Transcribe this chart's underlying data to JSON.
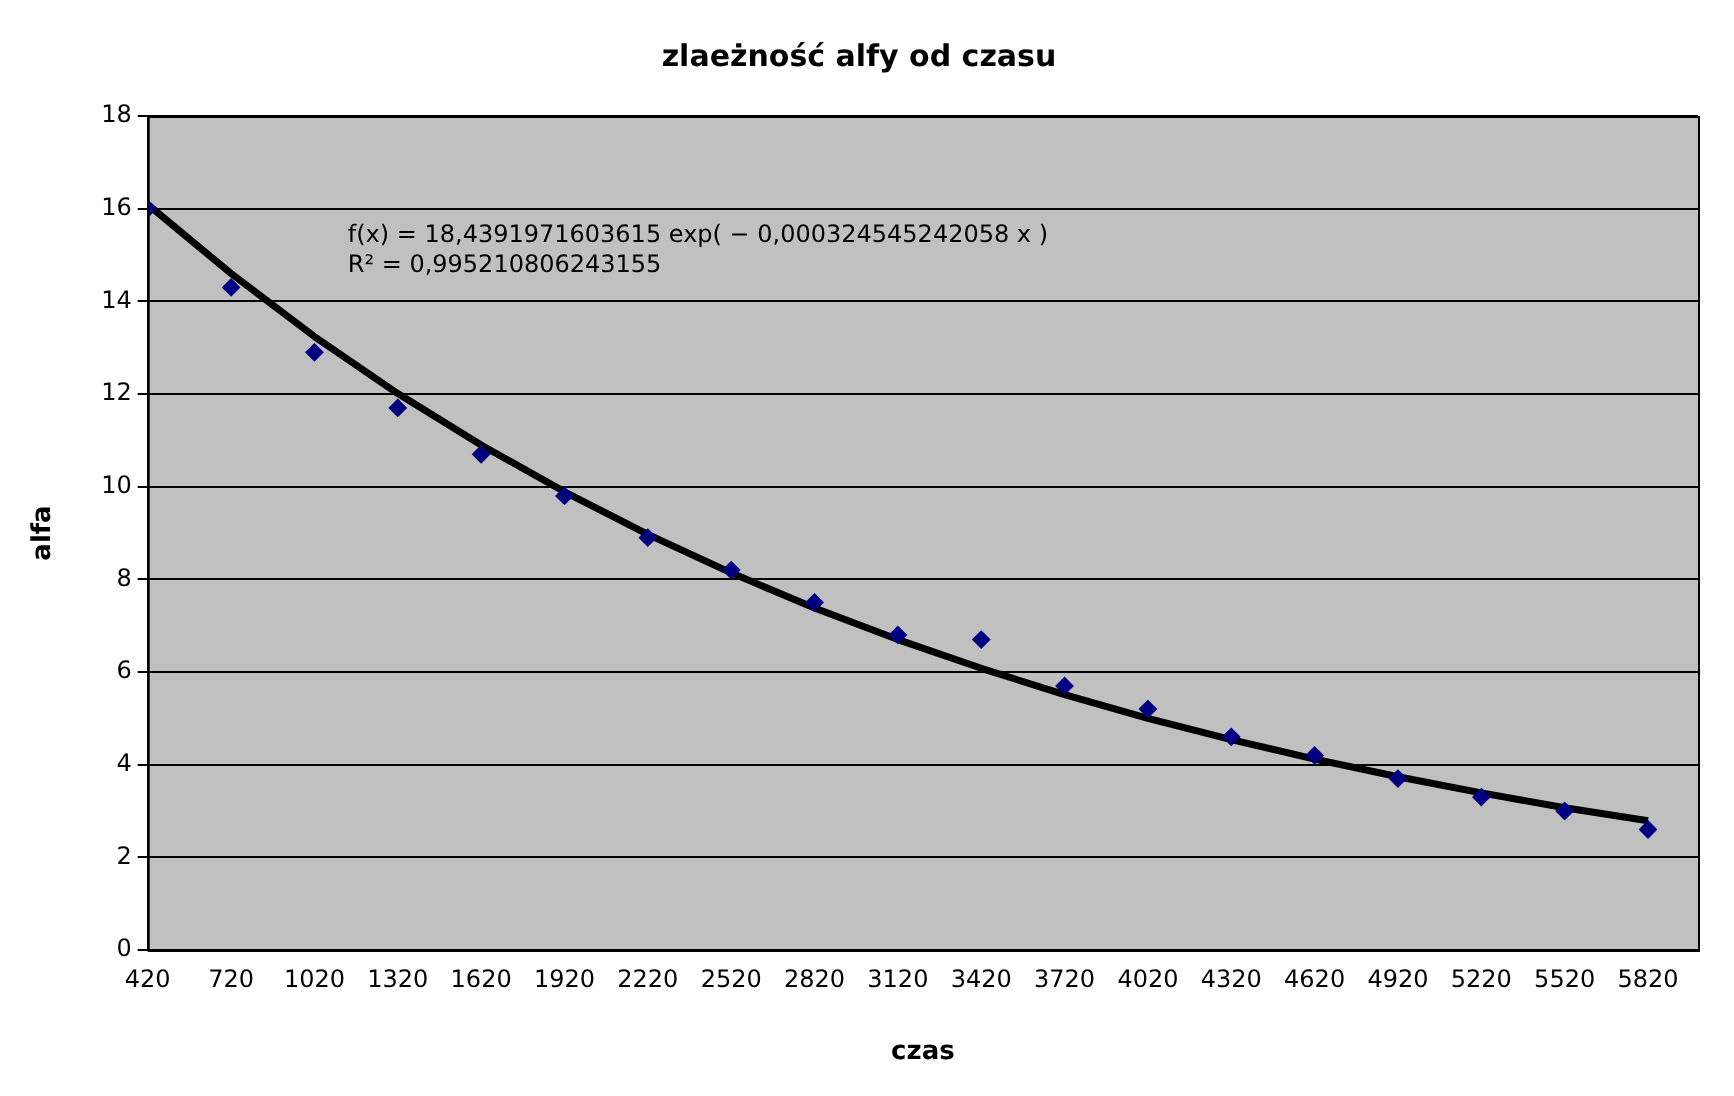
{
  "chart_data": {
    "type": "scatter",
    "title": "zlaeżność alfy od czasu",
    "xlabel": "czas",
    "ylabel": "alfa",
    "annotations": [
      "f(x) = 18,4391971603615 exp( − 0,000324545242058 x )",
      "R² = 0,995210806243155"
    ],
    "x": [
      420,
      720,
      1020,
      1320,
      1620,
      1920,
      2220,
      2520,
      2820,
      3120,
      3420,
      3720,
      4020,
      4320,
      4620,
      4920,
      5220,
      5520,
      5820
    ],
    "series": [
      {
        "type": "scatter",
        "color": "#000080",
        "marker": "diamond",
        "values": [
          16.0,
          14.3,
          12.9,
          11.7,
          10.7,
          9.8,
          8.9,
          8.2,
          7.5,
          6.8,
          6.7,
          5.7,
          5.2,
          4.6,
          4.2,
          3.7,
          3.3,
          3.0,
          2.6
        ]
      },
      {
        "type": "line",
        "color": "#000000",
        "marker": "none",
        "line_style": "solid",
        "x": [
          420,
          720,
          1020,
          1320,
          1620,
          1920,
          2220,
          2520,
          2820,
          3120,
          3420,
          3720,
          4020,
          4320,
          4620,
          4920,
          5220,
          5520,
          5820
        ],
        "values": [
          16.09,
          14.6,
          13.24,
          12.01,
          10.9,
          9.89,
          8.97,
          8.14,
          7.38,
          6.7,
          6.08,
          5.51,
          5.0,
          4.54,
          4.12,
          3.74,
          3.39,
          3.07,
          2.79
        ]
      }
    ],
    "xlim": [
      420,
      6000
    ],
    "xticks": [
      420,
      720,
      1020,
      1320,
      1620,
      1920,
      2220,
      2520,
      2820,
      3120,
      3420,
      3720,
      4020,
      4320,
      4620,
      4920,
      5220,
      5520,
      5820
    ],
    "ylim": [
      0,
      18
    ],
    "yticks": [
      0,
      2,
      4,
      6,
      8,
      10,
      12,
      14,
      16,
      18
    ],
    "grid": "y",
    "legend": false
  }
}
